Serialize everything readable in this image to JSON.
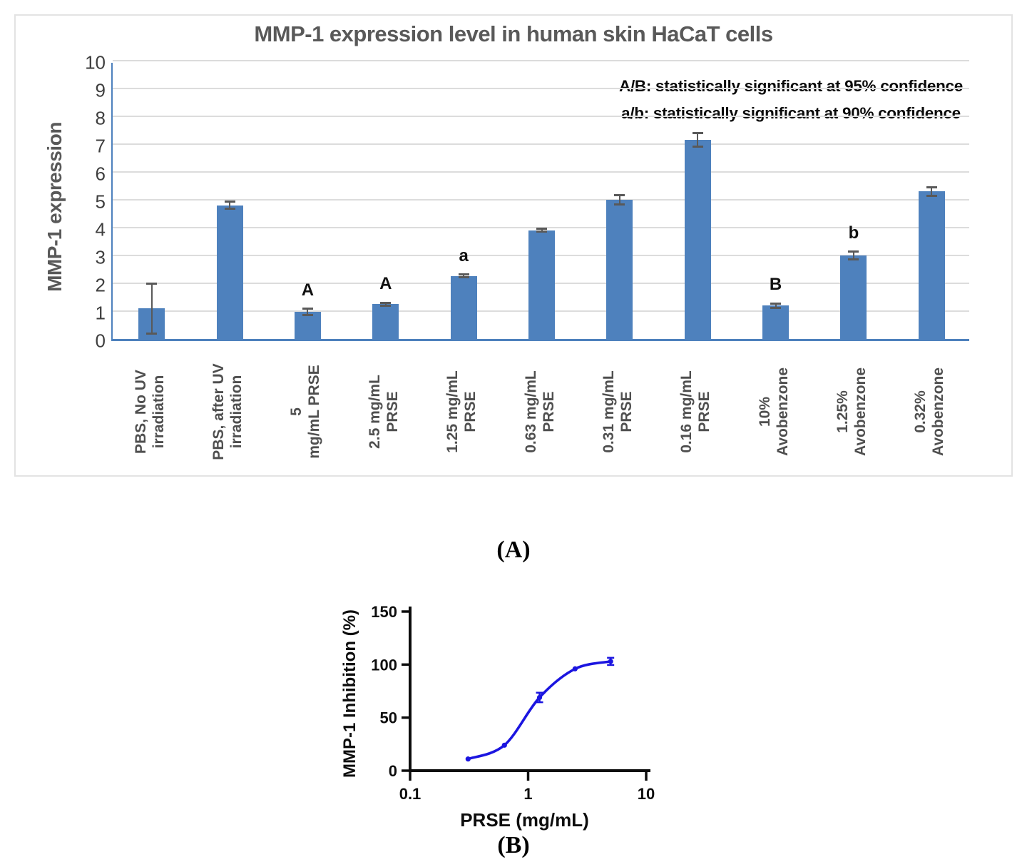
{
  "figure": {
    "panel_a_label": "(A)",
    "panel_b_label": "(B)"
  },
  "chart_data": [
    {
      "type": "bar",
      "title": "MMP-1 expression level in human skin HaCaT cells",
      "ylabel": "MMP-1 expression",
      "xlabel": "",
      "ylim": [
        0,
        10
      ],
      "yticks": [
        0,
        1,
        2,
        3,
        4,
        5,
        6,
        7,
        8,
        9,
        10
      ],
      "grid": "horizontal",
      "legend": "none",
      "annotations": [
        "A/B: statistically significant at 95% confidence",
        "a/b: statistically significant at 90% confidence"
      ],
      "categories": [
        "PBS, No UV\nirradiation",
        "PBS, after UV\nirradiation",
        "5\nmg/mL PRSE",
        "2.5 mg/mL\nPRSE",
        "1.25 mg/mL\nPRSE",
        "0.63 mg/mL\nPRSE",
        "0.31 mg/mL\nPRSE",
        "0.16 mg/mL\nPRSE",
        "10%\nAvobenzone",
        "1.25%\nAvobenzone",
        "0.32%\nAvobenzone"
      ],
      "values": [
        1.1,
        4.8,
        0.97,
        1.25,
        2.26,
        3.9,
        5.0,
        7.15,
        1.2,
        3.0,
        5.3
      ],
      "errors": [
        0.9,
        0.13,
        0.12,
        0.05,
        0.05,
        0.05,
        0.17,
        0.25,
        0.08,
        0.14,
        0.16
      ],
      "sig_labels": [
        "",
        "",
        "A",
        "A",
        "a",
        "",
        "",
        "",
        "B",
        "b",
        ""
      ],
      "bar_color": "#4e81bd",
      "axis_color": "#4e81bd",
      "grid_color": "#dcdcdc",
      "title_color": "#595959",
      "error_color": "#595959"
    },
    {
      "type": "line",
      "title": "",
      "xlabel": "PRSE (mg/mL)",
      "ylabel": "MMP-1 Inhibition (%)",
      "xscale": "log",
      "xlim": [
        0.1,
        10
      ],
      "xticks": [
        "0.1",
        "1",
        "10"
      ],
      "ylim": [
        0,
        150
      ],
      "yticks": [
        0,
        50,
        100,
        150
      ],
      "x": [
        0.31,
        0.63,
        1.25,
        2.5,
        5
      ],
      "y": [
        11,
        24,
        69,
        96,
        103
      ],
      "yerr": [
        0,
        0,
        4.5,
        0,
        3.4
      ],
      "line_color": "#1b15e0",
      "axis_color": "#0d0d0d"
    }
  ]
}
